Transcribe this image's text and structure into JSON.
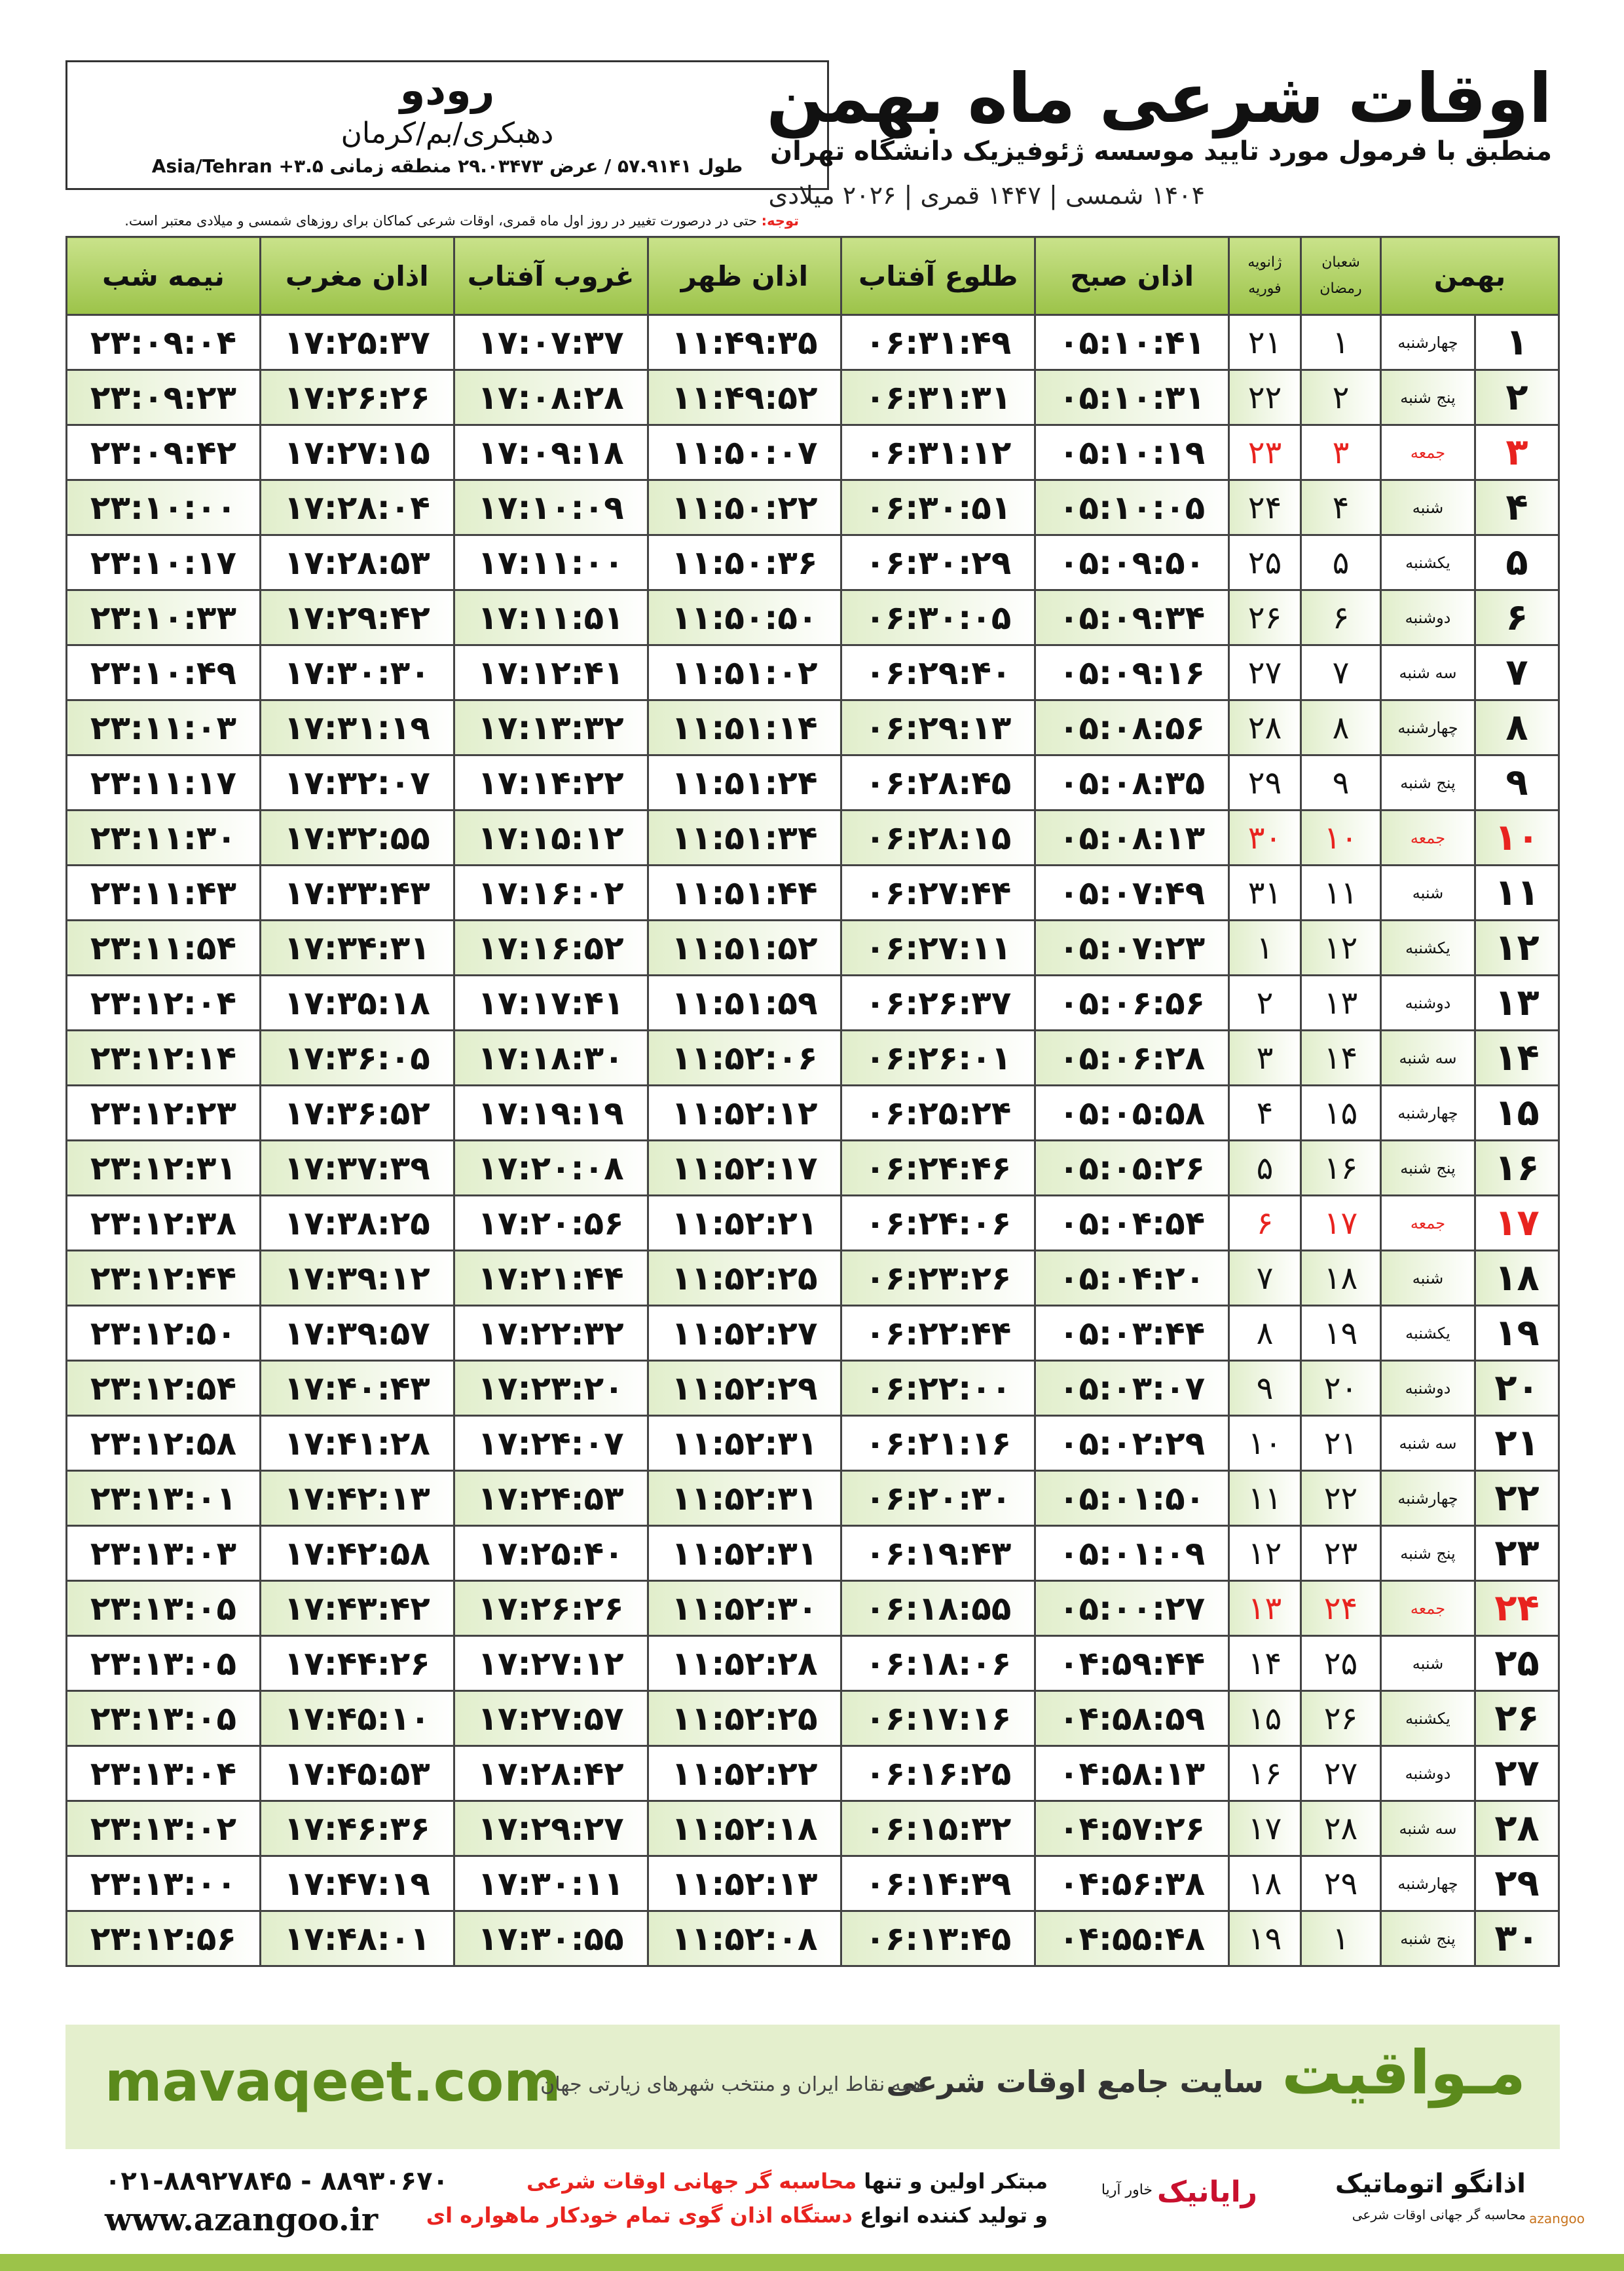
{
  "header": {
    "title": "اوقات شرعی ماه بهمن",
    "subtitle": "منطبق با فرمول مورد تایید موسسه ژئوفیزیک دانشگاه تهران",
    "dates": "۱۴۰۴ شمسی | ۱۴۴۷ قمری | ۲۰۲۶ میلادی"
  },
  "location": {
    "city": "رودو",
    "region": "دهبکری/بم/کرمان",
    "coords": "طول ۵۷.۹۱۴۱ / عرض ۲۹.۰۳۴۷۳ منطقه زمانی ۳.۵+ Asia/Tehran"
  },
  "note": {
    "label": "توجه:",
    "text": "حتی در درصورت تغییر در روز اول ماه قمری، اوقات شرعی کماکان برای روزهای شمسی و میلادی معتبر است."
  },
  "table": {
    "headers": [
      [
        "بهمن"
      ],
      [
        "شعبان",
        "رمضان"
      ],
      [
        "ژانویه",
        "فوریه"
      ],
      [
        "اذان صبح"
      ],
      [
        "طلوع آفتاب"
      ],
      [
        "اذان ظهر"
      ],
      [
        "غروب آفتاب"
      ],
      [
        "اذان مغرب"
      ],
      [
        "نیمه شب"
      ]
    ],
    "rows": [
      {
        "cells": [
          "۱",
          "چهارشنبه",
          "۱",
          "۲۱",
          "۰۵:۱۰:۴۱",
          "۰۶:۳۱:۴۹",
          "۱۱:۴۹:۳۵",
          "۱۷:۰۷:۳۷",
          "۱۷:۲۵:۳۷",
          "۲۳:۰۹:۰۴"
        ]
      },
      {
        "cells": [
          "۲",
          "پنج شنبه",
          "۲",
          "۲۲",
          "۰۵:۱۰:۳۱",
          "۰۶:۳۱:۳۱",
          "۱۱:۴۹:۵۲",
          "۱۷:۰۸:۲۸",
          "۱۷:۲۶:۲۶",
          "۲۳:۰۹:۲۳"
        ]
      },
      {
        "cells": [
          "۳",
          "جمعه",
          "۳",
          "۲۳",
          "۰۵:۱۰:۱۹",
          "۰۶:۳۱:۱۲",
          "۱۱:۵۰:۰۷",
          "۱۷:۰۹:۱۸",
          "۱۷:۲۷:۱۵",
          "۲۳:۰۹:۴۲"
        ],
        "color": "#e8231f"
      },
      {
        "cells": [
          "۴",
          "شنبه",
          "۴",
          "۲۴",
          "۰۵:۱۰:۰۵",
          "۰۶:۳۰:۵۱",
          "۱۱:۵۰:۲۲",
          "۱۷:۱۰:۰۹",
          "۱۷:۲۸:۰۴",
          "۲۳:۱۰:۰۰"
        ]
      },
      {
        "cells": [
          "۵",
          "یکشنبه",
          "۵",
          "۲۵",
          "۰۵:۰۹:۵۰",
          "۰۶:۳۰:۲۹",
          "۱۱:۵۰:۳۶",
          "۱۷:۱۱:۰۰",
          "۱۷:۲۸:۵۳",
          "۲۳:۱۰:۱۷"
        ]
      },
      {
        "cells": [
          "۶",
          "دوشنبه",
          "۶",
          "۲۶",
          "۰۵:۰۹:۳۴",
          "۰۶:۳۰:۰۵",
          "۱۱:۵۰:۵۰",
          "۱۷:۱۱:۵۱",
          "۱۷:۲۹:۴۲",
          "۲۳:۱۰:۳۳"
        ]
      },
      {
        "cells": [
          "۷",
          "سه شنبه",
          "۷",
          "۲۷",
          "۰۵:۰۹:۱۶",
          "۰۶:۲۹:۴۰",
          "۱۱:۵۱:۰۲",
          "۱۷:۱۲:۴۱",
          "۱۷:۳۰:۳۰",
          "۲۳:۱۰:۴۹"
        ]
      },
      {
        "cells": [
          "۸",
          "چهارشنبه",
          "۸",
          "۲۸",
          "۰۵:۰۸:۵۶",
          "۰۶:۲۹:۱۳",
          "۱۱:۵۱:۱۴",
          "۱۷:۱۳:۳۲",
          "۱۷:۳۱:۱۹",
          "۲۳:۱۱:۰۳"
        ]
      },
      {
        "cells": [
          "۹",
          "پنج شنبه",
          "۹",
          "۲۹",
          "۰۵:۰۸:۳۵",
          "۰۶:۲۸:۴۵",
          "۱۱:۵۱:۲۴",
          "۱۷:۱۴:۲۲",
          "۱۷:۳۲:۰۷",
          "۲۳:۱۱:۱۷"
        ]
      },
      {
        "cells": [
          "۱۰",
          "جمعه",
          "۱۰",
          "۳۰",
          "۰۵:۰۸:۱۳",
          "۰۶:۲۸:۱۵",
          "۱۱:۵۱:۳۴",
          "۱۷:۱۵:۱۲",
          "۱۷:۳۲:۵۵",
          "۲۳:۱۱:۳۰"
        ],
        "color": "#e8231f"
      },
      {
        "cells": [
          "۱۱",
          "شنبه",
          "۱۱",
          "۳۱",
          "۰۵:۰۷:۴۹",
          "۰۶:۲۷:۴۴",
          "۱۱:۵۱:۴۴",
          "۱۷:۱۶:۰۲",
          "۱۷:۳۳:۴۳",
          "۲۳:۱۱:۴۳"
        ]
      },
      {
        "cells": [
          "۱۲",
          "یکشنبه",
          "۱۲",
          "۱",
          "۰۵:۰۷:۲۳",
          "۰۶:۲۷:۱۱",
          "۱۱:۵۱:۵۲",
          "۱۷:۱۶:۵۲",
          "۱۷:۳۴:۳۱",
          "۲۳:۱۱:۵۴"
        ]
      },
      {
        "cells": [
          "۱۳",
          "دوشنبه",
          "۱۳",
          "۲",
          "۰۵:۰۶:۵۶",
          "۰۶:۲۶:۳۷",
          "۱۱:۵۱:۵۹",
          "۱۷:۱۷:۴۱",
          "۱۷:۳۵:۱۸",
          "۲۳:۱۲:۰۴"
        ]
      },
      {
        "cells": [
          "۱۴",
          "سه شنبه",
          "۱۴",
          "۳",
          "۰۵:۰۶:۲۸",
          "۰۶:۲۶:۰۱",
          "۱۱:۵۲:۰۶",
          "۱۷:۱۸:۳۰",
          "۱۷:۳۶:۰۵",
          "۲۳:۱۲:۱۴"
        ]
      },
      {
        "cells": [
          "۱۵",
          "چهارشنبه",
          "۱۵",
          "۴",
          "۰۵:۰۵:۵۸",
          "۰۶:۲۵:۲۴",
          "۱۱:۵۲:۱۲",
          "۱۷:۱۹:۱۹",
          "۱۷:۳۶:۵۲",
          "۲۳:۱۲:۲۳"
        ]
      },
      {
        "cells": [
          "۱۶",
          "پنج شنبه",
          "۱۶",
          "۵",
          "۰۵:۰۵:۲۶",
          "۰۶:۲۴:۴۶",
          "۱۱:۵۲:۱۷",
          "۱۷:۲۰:۰۸",
          "۱۷:۳۷:۳۹",
          "۲۳:۱۲:۳۱"
        ]
      },
      {
        "cells": [
          "۱۷",
          "جمعه",
          "۱۷",
          "۶",
          "۰۵:۰۴:۵۴",
          "۰۶:۲۴:۰۶",
          "۱۱:۵۲:۲۱",
          "۱۷:۲۰:۵۶",
          "۱۷:۳۸:۲۵",
          "۲۳:۱۲:۳۸"
        ],
        "color": "#e8231f"
      },
      {
        "cells": [
          "۱۸",
          "شنبه",
          "۱۸",
          "۷",
          "۰۵:۰۴:۲۰",
          "۰۶:۲۳:۲۶",
          "۱۱:۵۲:۲۵",
          "۱۷:۲۱:۴۴",
          "۱۷:۳۹:۱۲",
          "۲۳:۱۲:۴۴"
        ]
      },
      {
        "cells": [
          "۱۹",
          "یکشنبه",
          "۱۹",
          "۸",
          "۰۵:۰۳:۴۴",
          "۰۶:۲۲:۴۴",
          "۱۱:۵۲:۲۷",
          "۱۷:۲۲:۳۲",
          "۱۷:۳۹:۵۷",
          "۲۳:۱۲:۵۰"
        ]
      },
      {
        "cells": [
          "۲۰",
          "دوشنبه",
          "۲۰",
          "۹",
          "۰۵:۰۳:۰۷",
          "۰۶:۲۲:۰۰",
          "۱۱:۵۲:۲۹",
          "۱۷:۲۳:۲۰",
          "۱۷:۴۰:۴۳",
          "۲۳:۱۲:۵۴"
        ]
      },
      {
        "cells": [
          "۲۱",
          "سه شنبه",
          "۲۱",
          "۱۰",
          "۰۵:۰۲:۲۹",
          "۰۶:۲۱:۱۶",
          "۱۱:۵۲:۳۱",
          "۱۷:۲۴:۰۷",
          "۱۷:۴۱:۲۸",
          "۲۳:۱۲:۵۸"
        ]
      },
      {
        "cells": [
          "۲۲",
          "چهارشنبه",
          "۲۲",
          "۱۱",
          "۰۵:۰۱:۵۰",
          "۰۶:۲۰:۳۰",
          "۱۱:۵۲:۳۱",
          "۱۷:۲۴:۵۳",
          "۱۷:۴۲:۱۳",
          "۲۳:۱۳:۰۱"
        ]
      },
      {
        "cells": [
          "۲۳",
          "پنج شنبه",
          "۲۳",
          "۱۲",
          "۰۵:۰۱:۰۹",
          "۰۶:۱۹:۴۳",
          "۱۱:۵۲:۳۱",
          "۱۷:۲۵:۴۰",
          "۱۷:۴۲:۵۸",
          "۲۳:۱۳:۰۳"
        ]
      },
      {
        "cells": [
          "۲۴",
          "جمعه",
          "۲۴",
          "۱۳",
          "۰۵:۰۰:۲۷",
          "۰۶:۱۸:۵۵",
          "۱۱:۵۲:۳۰",
          "۱۷:۲۶:۲۶",
          "۱۷:۴۳:۴۲",
          "۲۳:۱۳:۰۵"
        ],
        "color": "#e8231f"
      },
      {
        "cells": [
          "۲۵",
          "شنبه",
          "۲۵",
          "۱۴",
          "۰۴:۵۹:۴۴",
          "۰۶:۱۸:۰۶",
          "۱۱:۵۲:۲۸",
          "۱۷:۲۷:۱۲",
          "۱۷:۴۴:۲۶",
          "۲۳:۱۳:۰۵"
        ]
      },
      {
        "cells": [
          "۲۶",
          "یکشنبه",
          "۲۶",
          "۱۵",
          "۰۴:۵۸:۵۹",
          "۰۶:۱۷:۱۶",
          "۱۱:۵۲:۲۵",
          "۱۷:۲۷:۵۷",
          "۱۷:۴۵:۱۰",
          "۲۳:۱۳:۰۵"
        ]
      },
      {
        "cells": [
          "۲۷",
          "دوشنبه",
          "۲۷",
          "۱۶",
          "۰۴:۵۸:۱۳",
          "۰۶:۱۶:۲۵",
          "۱۱:۵۲:۲۲",
          "۱۷:۲۸:۴۲",
          "۱۷:۴۵:۵۳",
          "۲۳:۱۳:۰۴"
        ]
      },
      {
        "cells": [
          "۲۸",
          "سه شنبه",
          "۲۸",
          "۱۷",
          "۰۴:۵۷:۲۶",
          "۰۶:۱۵:۳۲",
          "۱۱:۵۲:۱۸",
          "۱۷:۲۹:۲۷",
          "۱۷:۴۶:۳۶",
          "۲۳:۱۳:۰۲"
        ]
      },
      {
        "cells": [
          "۲۹",
          "چهارشنبه",
          "۲۹",
          "۱۸",
          "۰۴:۵۶:۳۸",
          "۰۶:۱۴:۳۹",
          "۱۱:۵۲:۱۳",
          "۱۷:۳۰:۱۱",
          "۱۷:۴۷:۱۹",
          "۲۳:۱۳:۰۰"
        ]
      },
      {
        "cells": [
          "۳۰",
          "پنج شنبه",
          "۱",
          "۱۹",
          "۰۴:۵۵:۴۸",
          "۰۶:۱۳:۴۵",
          "۱۱:۵۲:۰۸",
          "۱۷:۳۰:۵۵",
          "۱۷:۴۸:۰۱",
          "۲۳:۱۲:۵۶"
        ]
      }
    ]
  },
  "footer": {
    "brand": "مـواقیت",
    "slogan": "سایت جامع اوقات شرعی",
    "tagline": "همه نقاط ایران و منتخب شهرهای زیارتی جهان",
    "site": "mavaqeet.com",
    "line1_a": "مبتکر اولین و تنها",
    "line1_b": "محاسبه گر جهانی اوقات شرعی",
    "line2_a": "و تولید کننده انواع",
    "line2_b": "دستگاه اذان گوی تمام خودکار ماهواره ای",
    "phone": "۰۲۱-۸۸۹۲۷۸۴۵ - ۸۸۹۳۰۶۷۰",
    "web": "www.azangoo.ir",
    "logo1": "رایانیک",
    "logo1_sub": "خاور آریا",
    "logo2": "اذانگو اتوماتیک",
    "logo2_sub": "محاسبه گر جهانی اوقات شرعی",
    "logo2_en": "azangoo"
  }
}
